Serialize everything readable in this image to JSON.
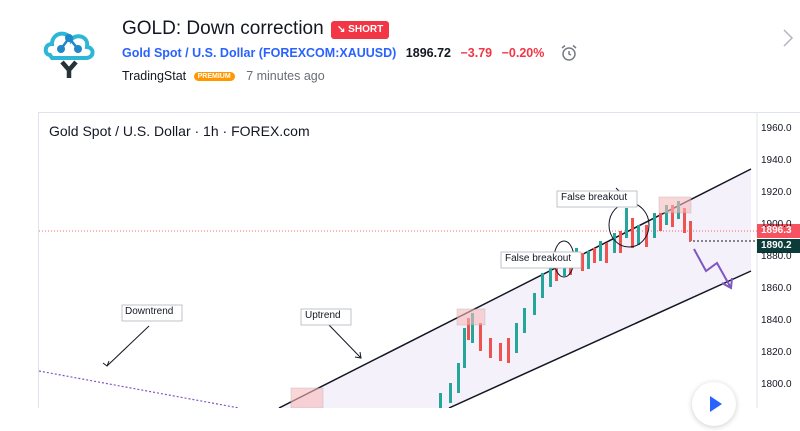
{
  "idea": {
    "title": "GOLD: Down correction",
    "direction": "SHORT",
    "symbol_link": "Gold Spot / U.S. Dollar (FOREXCOM:XAUUSD)",
    "price": "1896.72",
    "change": "−3.79",
    "change_pct": "−0.20%",
    "author": "TradingStat",
    "author_badge": "PREMIUM",
    "time_ago": "7 minutes ago"
  },
  "chart": {
    "header": "Gold Spot / U.S. Dollar · 1h · FOREX.com",
    "price_axis": [
      "1960.0",
      "1940.0",
      "1920.0",
      "1900.0",
      "1880.0",
      "1860.0",
      "1840.0",
      "1820.0",
      "1800.0"
    ],
    "current_price_label": "1896.3",
    "current_price_label_2": "1890.2",
    "annotations": {
      "downtrend": "Downtrend",
      "uptrend": "Uptrend",
      "false_breakout_1": "False breakout",
      "false_breakout_2": "False breakout"
    }
  },
  "colors": {
    "bearish": "#f23645",
    "link": "#2962ff",
    "premium": "#ff9800",
    "bull_candle": "#26a69a",
    "bear_candle": "#ef5350",
    "projection": "#7e57c2",
    "axis_highlight_1": "#f7525f",
    "axis_highlight_2": "#0c3c39"
  }
}
